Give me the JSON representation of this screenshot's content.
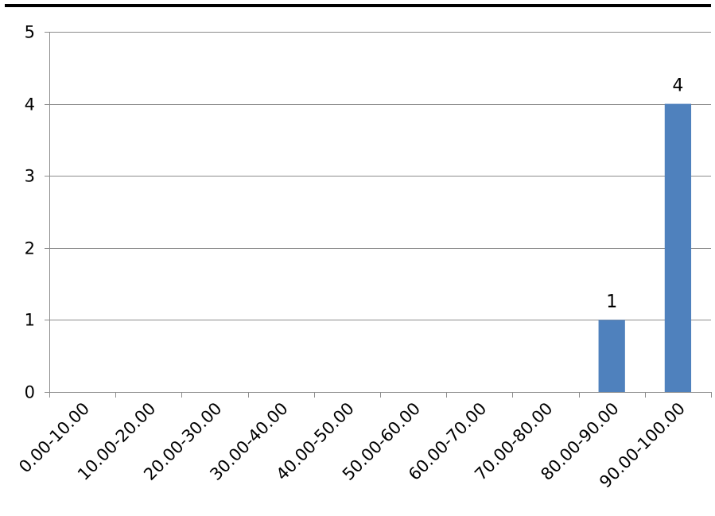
{
  "chart_data": {
    "type": "bar",
    "title": "",
    "xlabel": "",
    "ylabel": "",
    "categories": [
      "0.00-10.00",
      "10.00-20.00",
      "20.00-30.00",
      "30.00-40.00",
      "40.00-50.00",
      "50.00-60.00",
      "60.00-70.00",
      "70.00-80.00",
      "80.00-90.00",
      "90.00-100.00"
    ],
    "values": [
      0,
      0,
      0,
      0,
      0,
      0,
      0,
      0,
      1,
      4
    ],
    "data_labels": [
      "",
      "",
      "",
      "",
      "",
      "",
      "",
      "",
      "1",
      "4"
    ],
    "ylim": [
      0,
      5
    ],
    "yticks": [
      "0",
      "1",
      "2",
      "3",
      "4",
      "5"
    ],
    "grid": true,
    "legend": "none",
    "bar_color": "#4f81bd"
  }
}
